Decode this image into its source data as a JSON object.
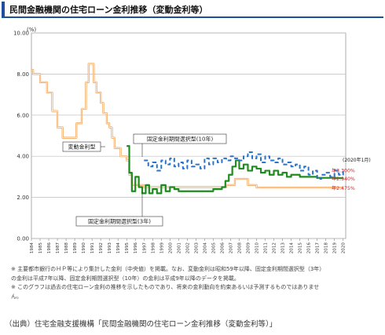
{
  "header": {
    "title": "民間金融機関の住宅ローン金利推移（変動金利等）"
  },
  "chart_data": {
    "type": "line",
    "unit_label": "(%)",
    "ylim": [
      0,
      10
    ],
    "y_ticks": [
      "0.00",
      "2.00",
      "4.00",
      "6.00",
      "8.00",
      "10.00"
    ],
    "x_ticks": [
      "1984",
      "1985",
      "1986",
      "1987",
      "1988",
      "1989",
      "1990",
      "1991",
      "1992",
      "1993",
      "1994",
      "1995",
      "1996",
      "1997",
      "1998",
      "1999",
      "2000",
      "2001",
      "2002",
      "2003",
      "2004",
      "2005",
      "2006",
      "2007",
      "2008",
      "2009",
      "2010",
      "2011",
      "2012",
      "2013",
      "2014",
      "2015",
      "2016",
      "2017",
      "2018",
      "2019",
      "2020"
    ],
    "xlim": [
      1984,
      2020.3
    ],
    "grid": true,
    "series": [
      {
        "name": "変動金利型",
        "color": "#f39c4a",
        "style": "solid",
        "x": [
          1984.0,
          1984.2,
          1984.6,
          1985.0,
          1985.4,
          1985.8,
          1986.1,
          1986.4,
          1986.7,
          1987.0,
          1987.3,
          1987.6,
          1988.0,
          1988.5,
          1989.0,
          1989.2,
          1989.5,
          1989.8,
          1990.0,
          1990.3,
          1990.6,
          1990.9,
          1991.2,
          1991.5,
          1991.7,
          1992.0,
          1992.3,
          1992.7,
          1993.0,
          1993.3,
          1993.6,
          1994.0,
          1994.3,
          1994.6,
          1995.0,
          1995.3,
          1995.6,
          1996.0,
          1997.0,
          1998.0,
          1999.0,
          2000.0,
          2001.0,
          2002.0,
          2003.0,
          2004.0,
          2005.0,
          2006.0,
          2006.5,
          2007.0,
          2007.5,
          2008.0,
          2008.8,
          2009.0,
          2010.0,
          2012.0,
          2014.0,
          2016.0,
          2018.0,
          2020.0
        ],
        "values": [
          8.2,
          8.0,
          8.0,
          7.6,
          7.6,
          7.1,
          7.1,
          6.2,
          6.2,
          5.4,
          5.4,
          4.9,
          4.9,
          4.9,
          4.9,
          5.6,
          5.6,
          6.3,
          6.3,
          7.6,
          8.5,
          8.5,
          7.6,
          7.1,
          7.1,
          6.6,
          6.1,
          5.6,
          5.4,
          4.9,
          4.4,
          4.4,
          4.0,
          4.0,
          3.8,
          3.1,
          2.6,
          2.6,
          2.5,
          2.5,
          2.5,
          2.5,
          2.5,
          2.5,
          2.5,
          2.5,
          2.5,
          2.5,
          2.6,
          2.6,
          2.9,
          2.9,
          2.9,
          2.6,
          2.475,
          2.475,
          2.475,
          2.475,
          2.475,
          2.475
        ]
      },
      {
        "name": "固定金利期間選択型（3年）",
        "color": "#1e8c1e",
        "style": "solid",
        "x": [
          1995.0,
          1995.3,
          1995.6,
          1996.0,
          1996.4,
          1996.8,
          1997.2,
          1997.6,
          1998.0,
          1998.5,
          1999.0,
          1999.5,
          2000.0,
          2000.5,
          2001.0,
          2002.0,
          2003.0,
          2004.0,
          2005.0,
          2006.0,
          2006.4,
          2006.8,
          2007.2,
          2007.6,
          2008.0,
          2008.5,
          2009.0,
          2009.5,
          2010.0,
          2010.5,
          2011.0,
          2011.5,
          2012.0,
          2012.5,
          2013.0,
          2013.5,
          2014.0,
          2015.0,
          2016.0,
          2017.0,
          2018.0,
          2019.0,
          2020.0
        ],
        "values": [
          4.5,
          3.2,
          2.3,
          3.0,
          2.5,
          2.2,
          2.6,
          2.2,
          2.4,
          2.2,
          2.6,
          2.3,
          2.5,
          2.4,
          2.3,
          2.3,
          2.3,
          2.3,
          2.4,
          2.5,
          2.8,
          3.1,
          3.5,
          3.8,
          3.4,
          3.6,
          3.3,
          3.5,
          3.4,
          3.2,
          3.3,
          3.1,
          3.3,
          3.1,
          3.2,
          3.0,
          3.1,
          3.0,
          3.0,
          2.95,
          2.95,
          2.94,
          2.94
        ]
      },
      {
        "name": "固定金利期間選択型（10年）",
        "color": "#2a73c9",
        "style": "dashed",
        "x": [
          1997.0,
          1997.5,
          1998.0,
          1998.5,
          1999.0,
          1999.5,
          2000.0,
          2000.5,
          2001.0,
          2001.5,
          2002.0,
          2002.5,
          2003.0,
          2003.5,
          2004.0,
          2004.5,
          2005.0,
          2005.5,
          2006.0,
          2006.5,
          2007.0,
          2007.5,
          2008.0,
          2008.5,
          2009.0,
          2009.5,
          2010.0,
          2010.5,
          2011.0,
          2011.5,
          2012.0,
          2012.5,
          2013.0,
          2013.5,
          2014.0,
          2014.5,
          2015.0,
          2015.5,
          2016.0,
          2016.5,
          2017.0,
          2017.5,
          2018.0,
          2018.5,
          2019.0,
          2019.5,
          2020.0
        ],
        "values": [
          3.8,
          3.5,
          3.7,
          3.3,
          3.8,
          3.6,
          3.9,
          3.5,
          3.7,
          3.4,
          3.8,
          3.5,
          3.6,
          3.4,
          3.9,
          3.6,
          3.9,
          3.7,
          3.9,
          3.8,
          4.0,
          3.9,
          3.8,
          4.0,
          4.2,
          3.9,
          4.1,
          3.7,
          4.0,
          3.8,
          3.7,
          3.9,
          3.6,
          3.7,
          3.5,
          3.6,
          3.3,
          3.5,
          3.1,
          3.3,
          2.9,
          3.1,
          3.2,
          3.0,
          3.3,
          3.1,
          3.3
        ]
      }
    ],
    "annotations": [
      {
        "text": "変動金利型",
        "target": "変動金利型"
      },
      {
        "text": "固定金利期間選択型(10年)",
        "target": "固定金利期間選択型（10年）"
      },
      {
        "text": "固定金利期間選択型(3年)",
        "target": "固定金利期間選択型（3年）"
      },
      {
        "text": "(2020年1月)"
      },
      {
        "text": "年3.300%",
        "color": "#d9262c"
      },
      {
        "text": "年2.940%",
        "color": "#d9262c"
      },
      {
        "text": "年2.475%",
        "color": "#d9262c"
      }
    ]
  },
  "notes": [
    "※ 主要都市銀行のＨＰ等により集計した金利（中央値）を掲載。なお、変動金利は昭和59年以降、固定金利期間選択型（3年）",
    "の金利は平成7年以降、固定金利期間選択型（10年）の金利は平成9年以降のデータを掲載。",
    "※ このグラフは過去の住宅ローン金利の推移を示したものであり、将来の金利動向を約束あるいは予測するものではありませ",
    "ん。"
  ],
  "source": "（出典）住宅金融支援機構「民間金融機関の住宅ローン金利推移（変動金利等）」"
}
